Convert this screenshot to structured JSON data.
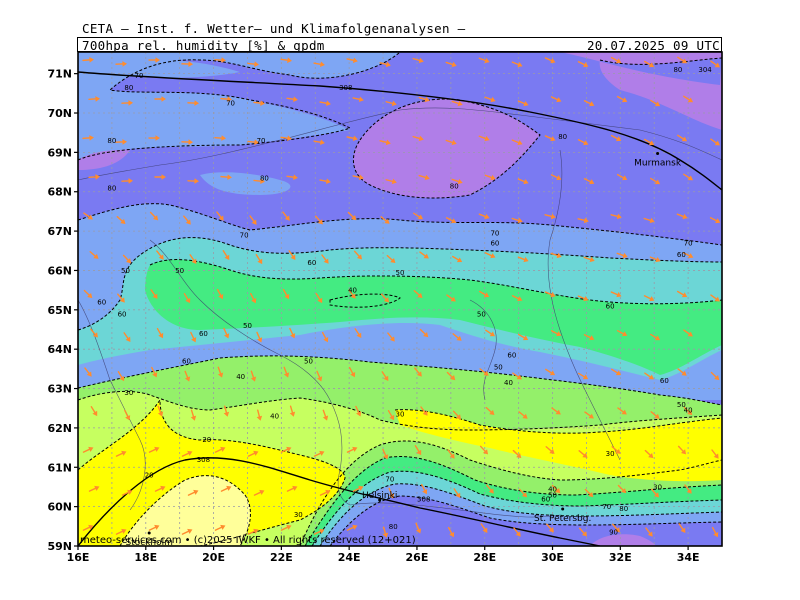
{
  "header": {
    "source": "CETA — Inst. f. Wetter— und Klimafolgenanalysen —",
    "parameter": "700hpa_rel._humidity_[%]_&_gpdm",
    "datetime": "20.07.2025 09 UTC"
  },
  "map": {
    "lat_labels": [
      "71N",
      "70N",
      "69N",
      "68N",
      "67N",
      "66N",
      "65N",
      "64N",
      "63N",
      "62N",
      "61N",
      "60N",
      "59N"
    ],
    "lon_labels": [
      "16E",
      "18E",
      "20E",
      "22E",
      "24E",
      "26E",
      "28E",
      "30E",
      "32E",
      "34E"
    ],
    "cities": [
      {
        "name": "Murmansk",
        "lon": 33.1,
        "lat": 68.97
      },
      {
        "name": "Helsinki",
        "lon": 24.9,
        "lat": 60.17
      },
      {
        "name": "St. Petersbg.",
        "lon": 30.3,
        "lat": 59.94
      },
      {
        "name": "Stockholm",
        "lon": 18.1,
        "lat": 59.33
      }
    ],
    "humidity_contour_labels": [
      {
        "text": "70",
        "lon": 17.8,
        "lat": 70.95
      },
      {
        "text": "80",
        "lon": 17.5,
        "lat": 70.65
      },
      {
        "text": "70",
        "lon": 20.5,
        "lat": 70.25
      },
      {
        "text": "80",
        "lon": 17.0,
        "lat": 69.3
      },
      {
        "text": "70",
        "lon": 21.4,
        "lat": 69.3
      },
      {
        "text": "80",
        "lon": 21.5,
        "lat": 68.35
      },
      {
        "text": "80",
        "lon": 17.0,
        "lat": 68.1
      },
      {
        "text": "80",
        "lon": 27.1,
        "lat": 68.15
      },
      {
        "text": "80",
        "lon": 30.3,
        "lat": 69.4
      },
      {
        "text": "80",
        "lon": 33.7,
        "lat": 71.1
      },
      {
        "text": "70",
        "lon": 20.9,
        "lat": 66.9
      },
      {
        "text": "60",
        "lon": 22.9,
        "lat": 66.2
      },
      {
        "text": "70",
        "lon": 28.3,
        "lat": 66.95
      },
      {
        "text": "60",
        "lon": 28.3,
        "lat": 66.7
      },
      {
        "text": "70",
        "lon": 34.0,
        "lat": 66.7
      },
      {
        "text": "60",
        "lon": 33.8,
        "lat": 66.4
      },
      {
        "text": "50",
        "lon": 17.4,
        "lat": 66.0
      },
      {
        "text": "50",
        "lon": 19.0,
        "lat": 66.0
      },
      {
        "text": "50",
        "lon": 25.5,
        "lat": 65.95
      },
      {
        "text": "40",
        "lon": 24.1,
        "lat": 65.5
      },
      {
        "text": "60",
        "lon": 16.7,
        "lat": 65.2
      },
      {
        "text": "60",
        "lon": 17.3,
        "lat": 64.9
      },
      {
        "text": "50",
        "lon": 21.0,
        "lat": 64.6
      },
      {
        "text": "50",
        "lon": 27.9,
        "lat": 64.9
      },
      {
        "text": "60",
        "lon": 31.7,
        "lat": 65.1
      },
      {
        "text": "60",
        "lon": 19.7,
        "lat": 64.4
      },
      {
        "text": "60",
        "lon": 19.2,
        "lat": 63.7
      },
      {
        "text": "50",
        "lon": 22.8,
        "lat": 63.7
      },
      {
        "text": "60",
        "lon": 28.8,
        "lat": 63.85
      },
      {
        "text": "50",
        "lon": 28.4,
        "lat": 63.55
      },
      {
        "text": "40",
        "lon": 20.8,
        "lat": 63.3
      },
      {
        "text": "40",
        "lon": 28.7,
        "lat": 63.15
      },
      {
        "text": "30",
        "lon": 17.5,
        "lat": 62.9
      },
      {
        "text": "60",
        "lon": 33.3,
        "lat": 63.2
      },
      {
        "text": "50",
        "lon": 33.8,
        "lat": 62.6
      },
      {
        "text": "40",
        "lon": 34.0,
        "lat": 62.45
      },
      {
        "text": "40",
        "lon": 21.8,
        "lat": 62.3
      },
      {
        "text": "30",
        "lon": 25.5,
        "lat": 62.35
      },
      {
        "text": "20",
        "lon": 19.8,
        "lat": 61.7
      },
      {
        "text": "30",
        "lon": 31.7,
        "lat": 61.35
      },
      {
        "text": "20",
        "lon": 18.1,
        "lat": 60.8
      },
      {
        "text": "30",
        "lon": 33.1,
        "lat": 60.5
      },
      {
        "text": "70",
        "lon": 25.2,
        "lat": 60.7
      },
      {
        "text": "30",
        "lon": 22.5,
        "lat": 59.8
      },
      {
        "text": "40",
        "lon": 30.0,
        "lat": 60.45
      },
      {
        "text": "50",
        "lon": 30.0,
        "lat": 60.3
      },
      {
        "text": "60",
        "lon": 29.8,
        "lat": 60.2
      },
      {
        "text": "70",
        "lon": 31.6,
        "lat": 60.0
      },
      {
        "text": "80",
        "lon": 32.1,
        "lat": 59.95
      },
      {
        "text": "80",
        "lon": 25.3,
        "lat": 59.5
      },
      {
        "text": "90",
        "lon": 31.8,
        "lat": 59.35
      }
    ],
    "geopotential_labels": [
      {
        "text": "308",
        "lon": 23.9,
        "lat": 70.65
      },
      {
        "text": "308",
        "lon": 19.7,
        "lat": 61.2
      },
      {
        "text": "308",
        "lon": 26.2,
        "lat": 60.2
      },
      {
        "text": "304",
        "lon": 34.5,
        "lat": 71.1
      }
    ],
    "colors": {
      "rh_20": "#ffff9a",
      "rh_30": "#ffff00",
      "rh_40": "#c6ff60",
      "rh_50": "#94f06a",
      "rh_60": "#44eb82",
      "rh_70": "#6cd6d6",
      "rh_80": "#7ea6f4",
      "rh_90": "#7a7af2",
      "rh_100": "#b07ee8",
      "wind_arrows": "#ff8c2e"
    }
  },
  "footer": {
    "copyright": "meteo-services.com  •  (c)2025 IWKF  •  All rights reserved (12+021)"
  }
}
